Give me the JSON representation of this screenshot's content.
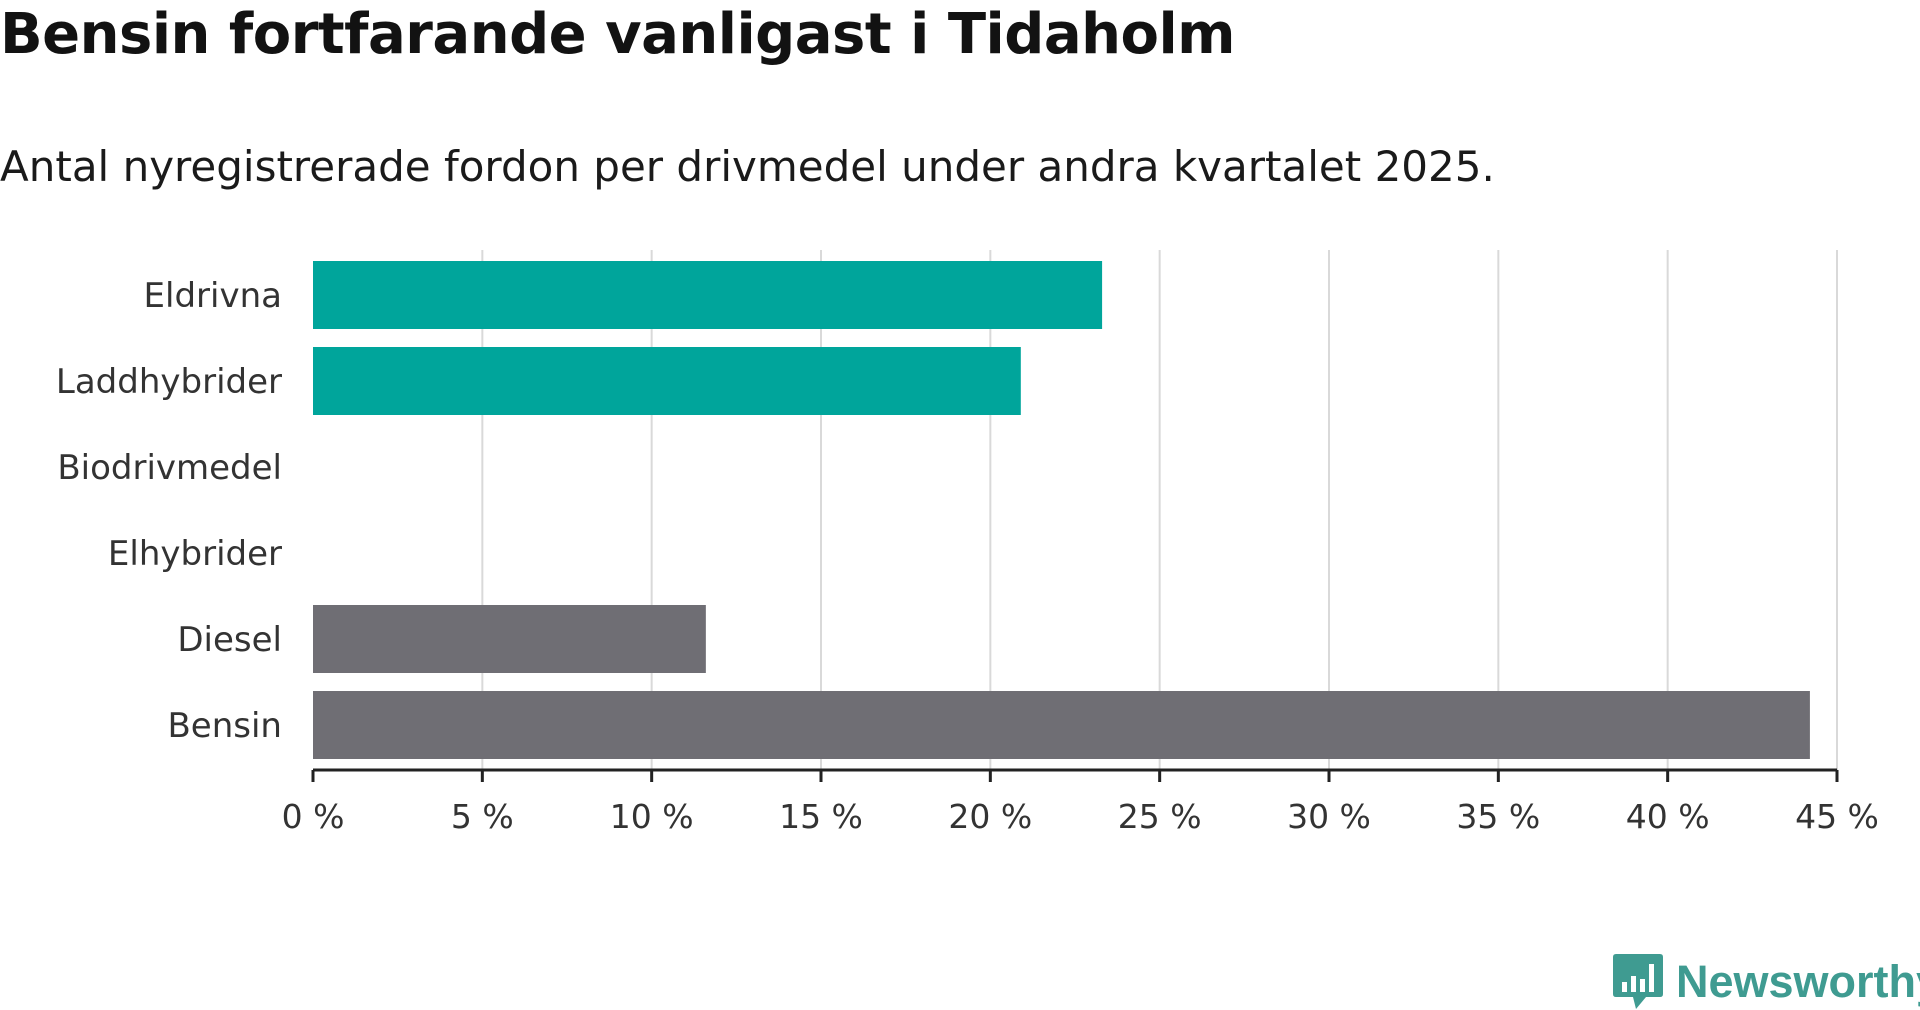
{
  "title": "Bensin fortfarande vanligast i Tidaholm",
  "subtitle": "Antal nyregistrerade fordon per drivmedel under andra kvartalet 2025.",
  "logo": "Newsworthy",
  "colors": {
    "highlight": "#00a59b",
    "other": "#6f6e74",
    "grid": "#d9d9d9",
    "axis": "#222222",
    "logo": "#3f9b91"
  },
  "chart_data": {
    "type": "bar",
    "orientation": "horizontal",
    "categories": [
      "Eldrivna",
      "Laddhybrider",
      "Biodrivmedel",
      "Elhybrider",
      "Diesel",
      "Bensin"
    ],
    "values": [
      23.3,
      20.9,
      0,
      0,
      11.6,
      44.2
    ],
    "bar_colors": [
      "#00a59b",
      "#00a59b",
      "#00a59b",
      "#00a59b",
      "#6f6e74",
      "#6f6e74"
    ],
    "xlim": [
      0,
      45
    ],
    "xticks": [
      0,
      5,
      10,
      15,
      20,
      25,
      30,
      35,
      40,
      45
    ],
    "xtick_labels": [
      "0 %",
      "5 %",
      "10 %",
      "15 %",
      "20 %",
      "25 %",
      "30 %",
      "35 %",
      "40 %",
      "45 %"
    ],
    "xlabel": "",
    "ylabel": "",
    "grid": "vertical",
    "legend": "none"
  }
}
